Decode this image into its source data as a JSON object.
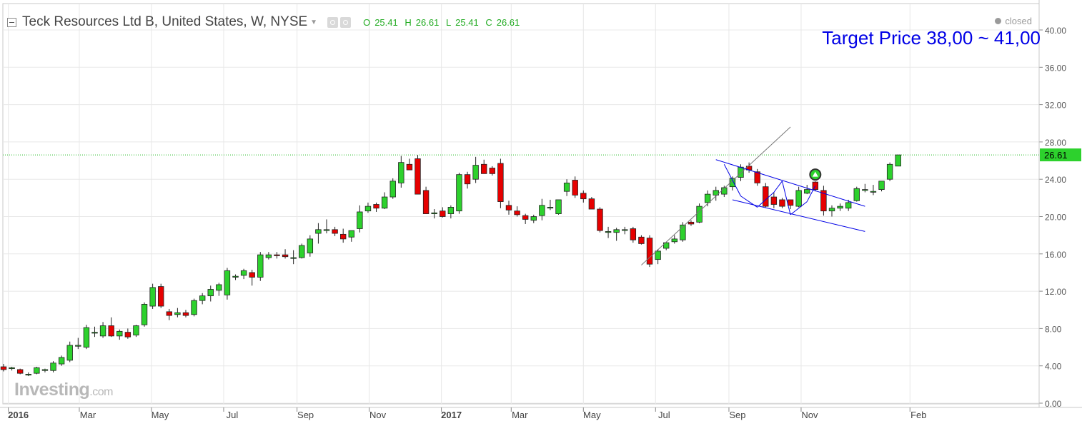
{
  "header": {
    "title": "Teck Resources Ltd B, United States, W, NYSE",
    "ohlc": {
      "o_label": "O",
      "o": "25.41",
      "h_label": "H",
      "h": "26.61",
      "l_label": "L",
      "l": "25.41",
      "c_label": "C",
      "c": "26.61"
    },
    "status": "closed"
  },
  "annotation": {
    "target_text": "Target Price 38,00 ~ 41,00"
  },
  "branding": {
    "logo": "Investing",
    "logo_suffix": ".com"
  },
  "colors": {
    "up": "#2dd12d",
    "down": "#e60000",
    "grid": "#e8e8e8",
    "trendline": "#0000e6",
    "last_price_line": "#22bb22",
    "price_label_bg": "#2dd12d"
  },
  "chart_data": {
    "type": "candlestick",
    "ylim": [
      0,
      42
    ],
    "y_ticks": [
      0,
      4,
      8,
      12,
      16,
      20,
      24,
      28,
      32,
      36,
      40
    ],
    "y_tick_labels": [
      "0.00",
      "4.00",
      "8.00",
      "12.00",
      "16.00",
      "20.00",
      "24.00",
      "28.00",
      "32.00",
      "36.00",
      "40.00"
    ],
    "x_labels": [
      {
        "date": "2016-01-01",
        "label": "2016",
        "bold": true
      },
      {
        "date": "2016-03-01",
        "label": "Mar"
      },
      {
        "date": "2016-05-01",
        "label": "May"
      },
      {
        "date": "2016-07-01",
        "label": "Jul"
      },
      {
        "date": "2016-09-01",
        "label": "Sep"
      },
      {
        "date": "2016-11-01",
        "label": "Nov"
      },
      {
        "date": "2017-01-01",
        "label": "2017",
        "bold": true
      },
      {
        "date": "2017-03-01",
        "label": "Mar"
      },
      {
        "date": "2017-05-01",
        "label": "May"
      },
      {
        "date": "2017-07-01",
        "label": "Jul"
      },
      {
        "date": "2017-09-01",
        "label": "Sep"
      },
      {
        "date": "2017-11-01",
        "label": "Nov"
      },
      {
        "date": "2018-02-01",
        "label": "Feb"
      }
    ],
    "first_week": "2015-12-28",
    "last_price": 26.61,
    "last_price_label": "26.61",
    "candles": [
      [
        3.9,
        4.2,
        3.4,
        3.6
      ],
      [
        3.7,
        3.9,
        3.5,
        3.8
      ],
      [
        3.6,
        3.7,
        3.1,
        3.2
      ],
      [
        3.1,
        3.3,
        2.9,
        3.1
      ],
      [
        3.2,
        3.9,
        3.1,
        3.8
      ],
      [
        3.5,
        3.7,
        3.3,
        3.6
      ],
      [
        3.5,
        4.5,
        3.3,
        4.3
      ],
      [
        4.2,
        5.1,
        4.0,
        4.9
      ],
      [
        4.6,
        6.6,
        4.4,
        6.2
      ],
      [
        6.1,
        7.0,
        5.8,
        6.2
      ],
      [
        6.0,
        8.4,
        5.8,
        8.1
      ],
      [
        7.5,
        8.2,
        7.1,
        7.6
      ],
      [
        7.2,
        8.7,
        7.0,
        8.3
      ],
      [
        8.3,
        9.2,
        7.1,
        7.2
      ],
      [
        7.2,
        7.9,
        6.8,
        7.7
      ],
      [
        7.6,
        8.0,
        6.9,
        7.1
      ],
      [
        7.3,
        8.4,
        7.1,
        8.3
      ],
      [
        8.4,
        10.8,
        8.2,
        10.6
      ],
      [
        10.4,
        12.8,
        10.1,
        12.4
      ],
      [
        12.5,
        12.8,
        10.2,
        10.4
      ],
      [
        9.8,
        10.1,
        8.9,
        9.4
      ],
      [
        9.5,
        10.2,
        9.2,
        9.7
      ],
      [
        9.7,
        10.0,
        9.2,
        9.4
      ],
      [
        9.5,
        11.2,
        9.3,
        11.0
      ],
      [
        11.0,
        11.8,
        10.6,
        11.5
      ],
      [
        11.5,
        12.6,
        10.9,
        12.2
      ],
      [
        12.1,
        12.9,
        11.5,
        12.7
      ],
      [
        11.6,
        14.5,
        11.1,
        14.2
      ],
      [
        13.5,
        13.8,
        13.2,
        13.6
      ],
      [
        13.7,
        14.4,
        13.3,
        14.2
      ],
      [
        14.0,
        14.3,
        12.6,
        13.5
      ],
      [
        13.5,
        16.2,
        13.1,
        15.9
      ],
      [
        15.6,
        16.2,
        15.4,
        15.9
      ],
      [
        15.9,
        16.2,
        15.5,
        15.8
      ],
      [
        15.9,
        16.5,
        15.5,
        15.7
      ],
      [
        15.6,
        16.4,
        14.9,
        15.6
      ],
      [
        15.6,
        17.1,
        15.5,
        16.9
      ],
      [
        16.1,
        18.0,
        15.7,
        17.6
      ],
      [
        18.2,
        19.3,
        17.1,
        18.6
      ],
      [
        18.5,
        19.7,
        18.2,
        18.6
      ],
      [
        18.6,
        18.9,
        17.9,
        18.2
      ],
      [
        18.1,
        18.7,
        17.2,
        17.6
      ],
      [
        17.8,
        18.5,
        17.3,
        18.5
      ],
      [
        18.7,
        21.2,
        18.3,
        20.5
      ],
      [
        20.6,
        21.5,
        20.4,
        21.1
      ],
      [
        21.3,
        21.5,
        20.5,
        20.9
      ],
      [
        20.9,
        22.6,
        20.8,
        22.1
      ],
      [
        22.1,
        24.1,
        21.9,
        23.8
      ],
      [
        23.6,
        26.5,
        23.1,
        25.8
      ],
      [
        25.6,
        26.2,
        25.0,
        25.0
      ],
      [
        26.2,
        26.6,
        22.4,
        22.4
      ],
      [
        22.8,
        23.2,
        20.3,
        20.3
      ],
      [
        20.3,
        20.8,
        19.8,
        20.4
      ],
      [
        20.6,
        21.0,
        19.9,
        20.0
      ],
      [
        20.3,
        21.2,
        19.8,
        21.0
      ],
      [
        20.6,
        24.7,
        20.3,
        24.5
      ],
      [
        24.5,
        24.8,
        23.0,
        23.5
      ],
      [
        24.0,
        26.4,
        23.6,
        25.5
      ],
      [
        25.6,
        26.1,
        24.6,
        24.6
      ],
      [
        25.2,
        25.4,
        24.4,
        24.6
      ],
      [
        25.7,
        26.2,
        20.9,
        21.6
      ],
      [
        21.2,
        21.7,
        20.2,
        20.7
      ],
      [
        20.6,
        21.1,
        20.0,
        20.2
      ],
      [
        20.1,
        20.3,
        19.2,
        19.7
      ],
      [
        19.6,
        20.2,
        19.3,
        20.0
      ],
      [
        20.1,
        21.9,
        19.6,
        21.2
      ],
      [
        21.0,
        21.8,
        20.7,
        21.0
      ],
      [
        20.3,
        21.7,
        20.2,
        21.8
      ],
      [
        22.7,
        24.0,
        22.2,
        23.6
      ],
      [
        23.9,
        24.3,
        22.0,
        22.3
      ],
      [
        22.5,
        22.8,
        21.5,
        21.9
      ],
      [
        21.9,
        22.1,
        20.8,
        20.8
      ],
      [
        20.8,
        21.0,
        18.3,
        18.5
      ],
      [
        18.3,
        18.9,
        17.7,
        18.4
      ],
      [
        18.3,
        18.8,
        17.4,
        18.6
      ],
      [
        18.6,
        18.9,
        18.1,
        18.6
      ],
      [
        18.7,
        18.9,
        17.2,
        17.5
      ],
      [
        17.8,
        18.0,
        17.0,
        17.1
      ],
      [
        17.7,
        18.0,
        14.6,
        14.9
      ],
      [
        15.4,
        16.5,
        14.9,
        16.3
      ],
      [
        16.6,
        17.3,
        16.4,
        17.2
      ],
      [
        17.3,
        18.0,
        17.1,
        17.6
      ],
      [
        17.5,
        19.4,
        17.3,
        19.1
      ],
      [
        19.4,
        19.6,
        19.0,
        19.2
      ],
      [
        19.4,
        21.4,
        19.3,
        21.1
      ],
      [
        21.5,
        22.8,
        21.1,
        22.4
      ],
      [
        22.3,
        23.2,
        21.7,
        22.8
      ],
      [
        22.4,
        23.3,
        22.1,
        23.1
      ],
      [
        23.2,
        24.3,
        22.8,
        24.1
      ],
      [
        24.2,
        25.6,
        23.8,
        25.3
      ],
      [
        25.4,
        25.8,
        24.7,
        25.0
      ],
      [
        24.8,
        25.1,
        23.3,
        23.6
      ],
      [
        23.2,
        23.6,
        21.0,
        21.1
      ],
      [
        22.1,
        22.6,
        20.9,
        21.3
      ],
      [
        21.8,
        22.0,
        20.9,
        21.1
      ],
      [
        21.8,
        21.8,
        20.8,
        21.2
      ],
      [
        21.1,
        23.2,
        21.0,
        22.8
      ],
      [
        22.5,
        23.4,
        22.4,
        22.9
      ],
      [
        23.7,
        24.3,
        22.7,
        22.9
      ],
      [
        22.8,
        23.3,
        20.1,
        20.6
      ],
      [
        20.6,
        21.2,
        20.0,
        20.9
      ],
      [
        20.9,
        21.4,
        20.6,
        21.1
      ],
      [
        20.9,
        21.8,
        20.6,
        21.5
      ],
      [
        21.7,
        23.2,
        21.6,
        23.0
      ],
      [
        22.8,
        23.5,
        22.6,
        22.9
      ],
      [
        22.7,
        23.4,
        22.3,
        22.7
      ],
      [
        22.9,
        23.8,
        22.7,
        23.8
      ],
      [
        24.0,
        25.8,
        23.8,
        25.6
      ],
      [
        25.41,
        26.61,
        25.41,
        26.61
      ]
    ],
    "trendlines": [
      {
        "from": [
          "2017-06-19",
          14.8
        ],
        "to": [
          "2017-10-23",
          29.6
        ]
      },
      {
        "from": [
          "2017-08-21",
          26.1
        ],
        "to": [
          "2017-12-25",
          21.1
        ]
      },
      {
        "from": [
          "2017-09-04",
          21.8
        ],
        "to": [
          "2017-12-25",
          18.4
        ]
      },
      {
        "from": [
          "2017-08-28",
          25.6
        ],
        "to": [
          "2017-09-11",
          22.2
        ]
      },
      {
        "from": [
          "2017-09-11",
          22.2
        ],
        "to": [
          "2017-09-25",
          21.0
        ]
      },
      {
        "from": [
          "2017-09-25",
          21.0
        ],
        "to": [
          "2017-10-09",
          22.6
        ]
      },
      {
        "from": [
          "2017-10-09",
          22.6
        ],
        "to": [
          "2017-10-16",
          23.8
        ]
      },
      {
        "from": [
          "2017-10-16",
          23.8
        ],
        "to": [
          "2017-10-23",
          20.2
        ]
      },
      {
        "from": [
          "2017-10-23",
          20.2
        ],
        "to": [
          "2017-11-06",
          21.6
        ]
      },
      {
        "from": [
          "2017-11-06",
          21.6
        ],
        "to": [
          "2017-11-13",
          23.3
        ]
      }
    ],
    "signal_marker": {
      "date": "2017-11-13",
      "price": 24.5
    }
  }
}
